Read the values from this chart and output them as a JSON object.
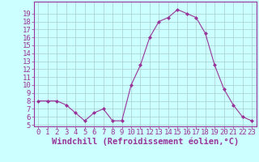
{
  "x": [
    0,
    1,
    2,
    3,
    4,
    5,
    6,
    7,
    8,
    9,
    10,
    11,
    12,
    13,
    14,
    15,
    16,
    17,
    18,
    19,
    20,
    21,
    22,
    23
  ],
  "y": [
    8,
    8,
    8,
    7.5,
    6.5,
    5.5,
    6.5,
    7,
    5.5,
    5.5,
    10,
    12.5,
    16,
    18,
    18.5,
    19.5,
    19,
    18.5,
    16.5,
    12.5,
    9.5,
    7.5,
    6,
    5.5
  ],
  "line_color": "#993399",
  "marker": "D",
  "marker_size": 2,
  "bg_color": "#ccffff",
  "grid_color": "#aacccc",
  "xlabel": "Windchill (Refroidissement éolien,°C)",
  "xlabel_color": "#993399",
  "tick_color": "#993399",
  "axis_color": "#993399",
  "ylim": [
    5,
    20
  ],
  "xlim": [
    -0.5,
    23.5
  ],
  "yticks": [
    5,
    6,
    7,
    8,
    9,
    10,
    11,
    12,
    13,
    14,
    15,
    16,
    17,
    18,
    19
  ],
  "xticks": [
    0,
    1,
    2,
    3,
    4,
    5,
    6,
    7,
    8,
    9,
    10,
    11,
    12,
    13,
    14,
    15,
    16,
    17,
    18,
    19,
    20,
    21,
    22,
    23
  ],
  "font_size": 6.5,
  "xlabel_font_size": 7.5
}
